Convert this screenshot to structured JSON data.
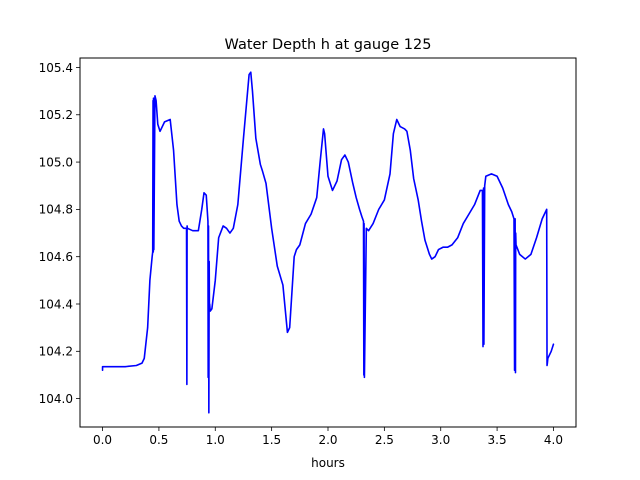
{
  "chart_data": {
    "type": "line",
    "title": "Water Depth h at gauge 125",
    "xlabel": "hours",
    "ylabel": "",
    "xlim": [
      -0.2,
      4.2
    ],
    "ylim": [
      103.88,
      105.44
    ],
    "grid": false,
    "xticks": [
      0.0,
      0.5,
      1.0,
      1.5,
      2.0,
      2.5,
      3.0,
      3.5,
      4.0
    ],
    "xtick_labels": [
      "0.0",
      "0.5",
      "1.0",
      "1.5",
      "2.0",
      "2.5",
      "3.0",
      "3.5",
      "4.0"
    ],
    "yticks": [
      104.0,
      104.2,
      104.4,
      104.6,
      104.8,
      105.0,
      105.2,
      105.4
    ],
    "ytick_labels": [
      "104.0",
      "104.2",
      "104.4",
      "104.6",
      "104.8",
      "105.0",
      "105.2",
      "105.4"
    ],
    "series": [
      {
        "color": "#0000ff",
        "x": [
          0.0,
          0.0,
          0.005,
          0.1,
          0.2,
          0.3,
          0.35,
          0.37,
          0.4,
          0.42,
          0.44,
          0.445,
          0.448,
          0.45,
          0.452,
          0.455,
          0.465,
          0.475,
          0.49,
          0.51,
          0.55,
          0.6,
          0.63,
          0.66,
          0.68,
          0.7,
          0.72,
          0.745,
          0.748,
          0.75,
          0.753,
          0.8,
          0.85,
          0.88,
          0.9,
          0.92,
          0.935,
          0.937,
          0.94,
          0.943,
          0.946,
          0.948,
          0.95,
          0.955,
          0.97,
          1.0,
          1.03,
          1.07,
          1.1,
          1.13,
          1.16,
          1.2,
          1.25,
          1.3,
          1.315,
          1.33,
          1.36,
          1.4,
          1.42,
          1.45,
          1.5,
          1.55,
          1.6,
          1.62,
          1.64,
          1.66,
          1.68,
          1.7,
          1.72,
          1.75,
          1.8,
          1.85,
          1.9,
          1.93,
          1.96,
          1.97,
          2.0,
          2.04,
          2.08,
          2.12,
          2.15,
          2.18,
          2.22,
          2.25,
          2.28,
          2.3,
          2.315,
          2.318,
          2.32,
          2.323,
          2.34,
          2.36,
          2.4,
          2.45,
          2.5,
          2.55,
          2.58,
          2.61,
          2.64,
          2.68,
          2.7,
          2.73,
          2.76,
          2.8,
          2.83,
          2.86,
          2.9,
          2.92,
          2.95,
          2.98,
          3.02,
          3.06,
          3.1,
          3.15,
          3.2,
          3.25,
          3.3,
          3.35,
          3.37,
          3.375,
          3.38,
          3.383,
          3.39,
          3.395,
          3.4,
          3.45,
          3.5,
          3.55,
          3.6,
          3.63,
          3.65,
          3.655,
          3.66,
          3.663,
          3.665,
          3.668,
          3.7,
          3.75,
          3.8,
          3.85,
          3.9,
          3.94,
          3.943,
          3.946,
          3.95,
          3.98,
          4.0
        ],
        "y": [
          104.12,
          104.135,
          104.135,
          104.135,
          104.135,
          104.14,
          104.15,
          104.17,
          104.3,
          104.5,
          104.6,
          104.62,
          105.26,
          104.62,
          105.27,
          104.63,
          105.28,
          105.26,
          105.16,
          105.13,
          105.17,
          105.18,
          105.05,
          104.82,
          104.75,
          104.73,
          104.72,
          104.72,
          104.06,
          104.73,
          104.72,
          104.71,
          104.71,
          104.8,
          104.87,
          104.86,
          104.75,
          104.09,
          104.73,
          103.94,
          104.58,
          104.39,
          104.4,
          104.37,
          104.38,
          104.5,
          104.68,
          104.73,
          104.72,
          104.7,
          104.72,
          104.82,
          105.1,
          105.37,
          105.38,
          105.3,
          105.1,
          104.99,
          104.96,
          104.91,
          104.72,
          104.56,
          104.48,
          104.38,
          104.28,
          104.3,
          104.45,
          104.6,
          104.63,
          104.65,
          104.74,
          104.78,
          104.85,
          105.0,
          105.14,
          105.12,
          104.94,
          104.88,
          104.92,
          105.01,
          105.03,
          105.0,
          104.91,
          104.85,
          104.8,
          104.77,
          104.75,
          104.1,
          104.74,
          104.09,
          104.72,
          104.71,
          104.74,
          104.8,
          104.84,
          104.95,
          105.12,
          105.18,
          105.15,
          105.14,
          105.13,
          105.05,
          104.93,
          104.84,
          104.75,
          104.67,
          104.61,
          104.59,
          104.6,
          104.63,
          104.64,
          104.64,
          104.65,
          104.68,
          104.74,
          104.78,
          104.82,
          104.88,
          104.88,
          104.22,
          104.89,
          104.23,
          104.9,
          104.92,
          104.94,
          104.95,
          104.94,
          104.89,
          104.82,
          104.79,
          104.76,
          104.12,
          104.76,
          104.11,
          104.7,
          104.65,
          104.61,
          104.59,
          104.61,
          104.68,
          104.76,
          104.8,
          104.14,
          104.15,
          104.17,
          104.2,
          104.23
        ]
      }
    ]
  }
}
